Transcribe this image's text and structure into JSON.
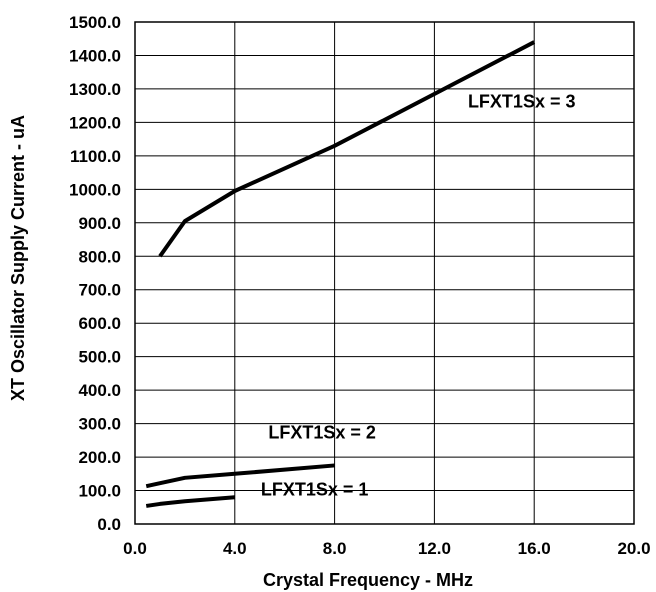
{
  "chart_data": {
    "type": "line",
    "xlabel": "Crystal Frequency - MHz",
    "ylabel": "XT Oscillator Supply Current  - uA",
    "xlim": [
      0,
      20
    ],
    "ylim": [
      0,
      1500
    ],
    "x_ticks": [
      "0.0",
      "4.0",
      "8.0",
      "12.0",
      "16.0",
      "20.0"
    ],
    "y_ticks": [
      "0.0",
      "100.0",
      "200.0",
      "300.0",
      "400.0",
      "500.0",
      "600.0",
      "700.0",
      "800.0",
      "900.0",
      "1000.0",
      "1100.0",
      "1200.0",
      "1300.0",
      "1400.0",
      "1500.0"
    ],
    "grid": true,
    "series": [
      {
        "name": "LFXT1Sx = 3",
        "x": [
          1,
          2,
          4,
          8,
          16
        ],
        "y": [
          800,
          905,
          995,
          1130,
          1440
        ]
      },
      {
        "name": "LFXT1Sx = 2",
        "x": [
          0.45,
          1,
          2,
          4,
          8
        ],
        "y": [
          113,
          122,
          138,
          150,
          175
        ]
      },
      {
        "name": "LFXT1Sx = 1",
        "x": [
          0.45,
          1,
          2,
          4
        ],
        "y": [
          54,
          60,
          68,
          80
        ]
      }
    ]
  }
}
